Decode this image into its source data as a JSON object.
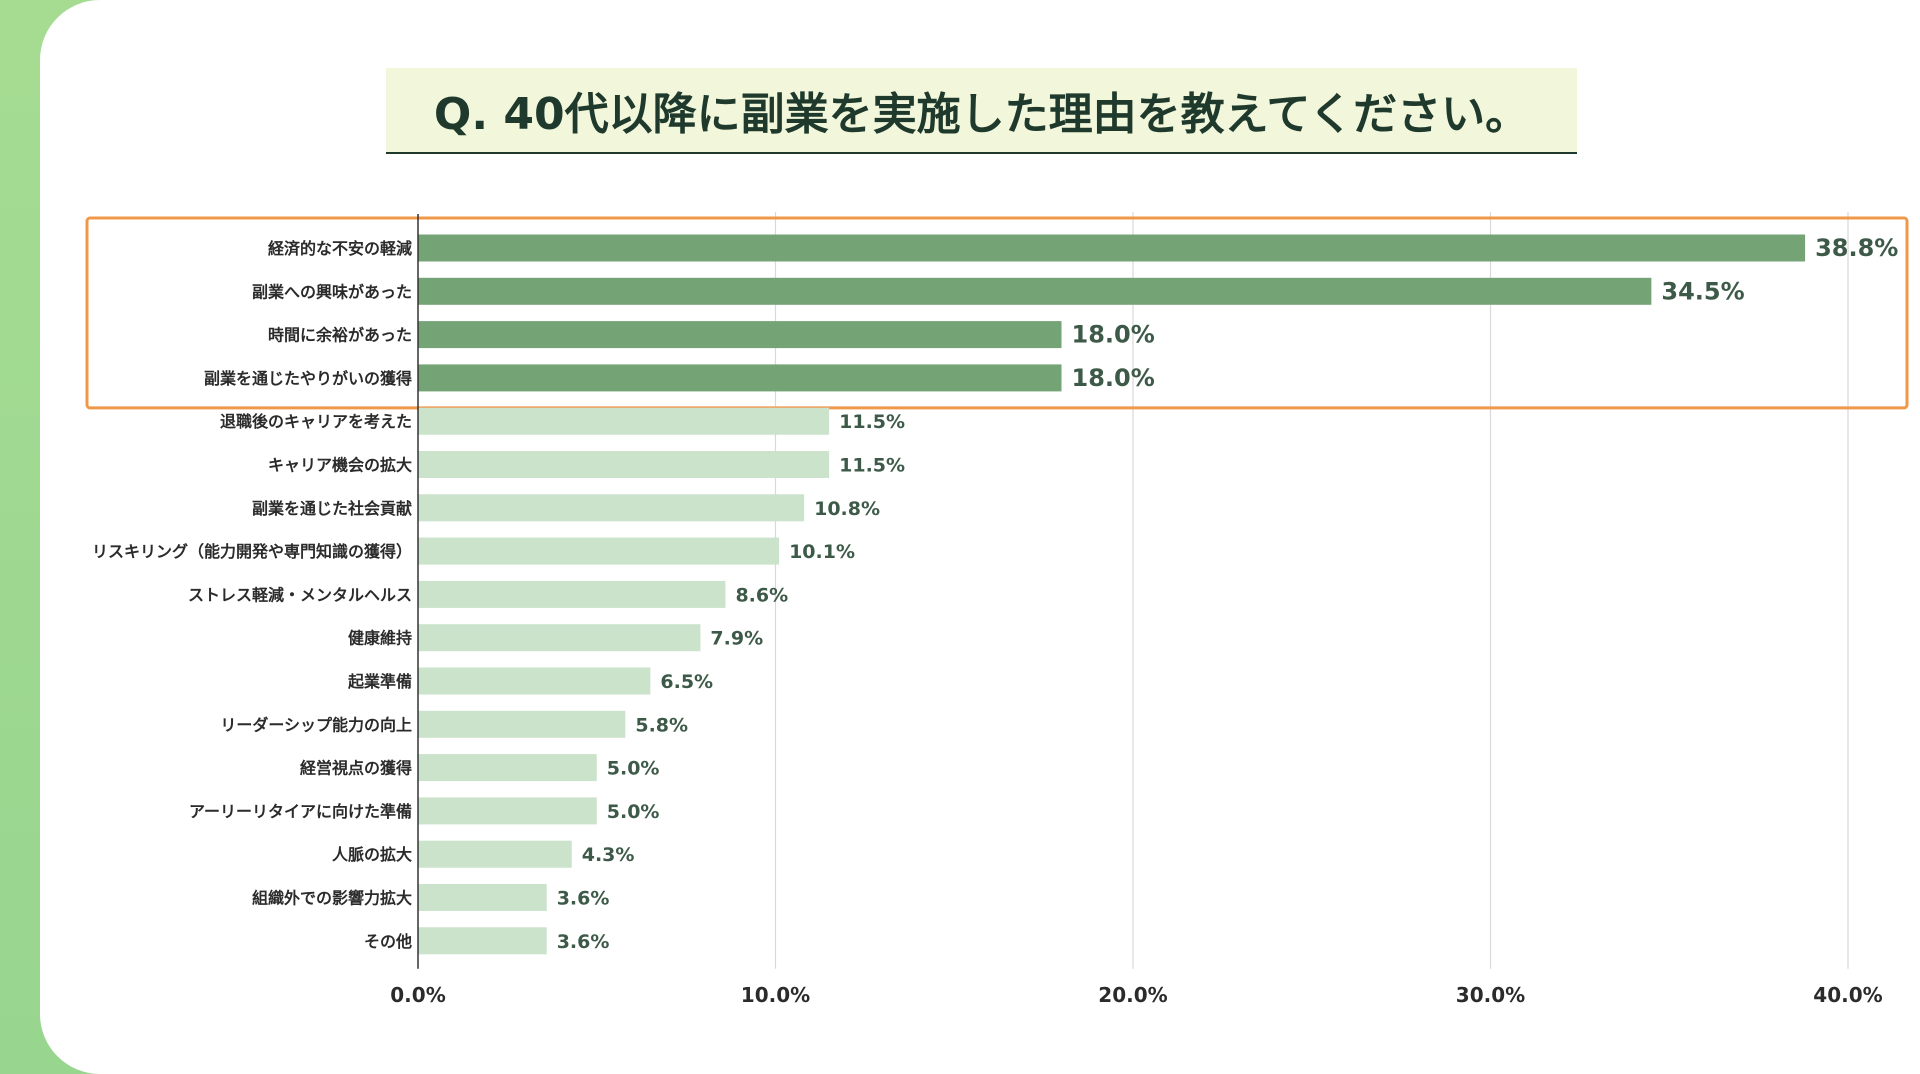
{
  "title": "Q. 40代以降に副業を実施した理由を教えてください。",
  "chart_data": {
    "type": "bar",
    "orientation": "horizontal",
    "title": "Q. 40代以降に副業を実施した理由を教えてください。",
    "xlabel": "",
    "ylabel": "",
    "xlim": [
      0,
      40
    ],
    "ticks": [
      "0.0%",
      "10.0%",
      "20.0%",
      "30.0%",
      "40.0%"
    ],
    "tick_values": [
      0,
      10,
      20,
      30,
      40
    ],
    "grid": true,
    "highlight_count": 4,
    "colors": {
      "highlight": "#74a476",
      "normal": "#cbe2cb",
      "box": "#f0984a",
      "grid": "#d9d9d9"
    },
    "categories": [
      "経済的な不安の軽減",
      "副業への興味があった",
      "時間に余裕があった",
      "副業を通じたやりがいの獲得",
      "退職後のキャリアを考えた",
      "キャリア機会の拡大",
      "副業を通じた社会貢献",
      "リスキリング（能力開発や専門知識の獲得）",
      "ストレス軽減・メンタルヘルス",
      "健康維持",
      "起業準備",
      "リーダーシップ能力の向上",
      "経営視点の獲得",
      "アーリーリタイアに向けた準備",
      "人脈の拡大",
      "組織外での影響力拡大",
      "その他"
    ],
    "values": [
      38.8,
      34.5,
      18.0,
      18.0,
      11.5,
      11.5,
      10.8,
      10.1,
      8.6,
      7.9,
      6.5,
      5.8,
      5.0,
      5.0,
      4.3,
      3.6,
      3.6
    ],
    "value_labels": [
      "38.8%",
      "34.5%",
      "18.0%",
      "18.0%",
      "11.5%",
      "11.5%",
      "10.8%",
      "10.1%",
      "8.6%",
      "7.9%",
      "6.5%",
      "5.8%",
      "5.0%",
      "5.0%",
      "4.3%",
      "3.6%",
      "3.6%"
    ]
  }
}
